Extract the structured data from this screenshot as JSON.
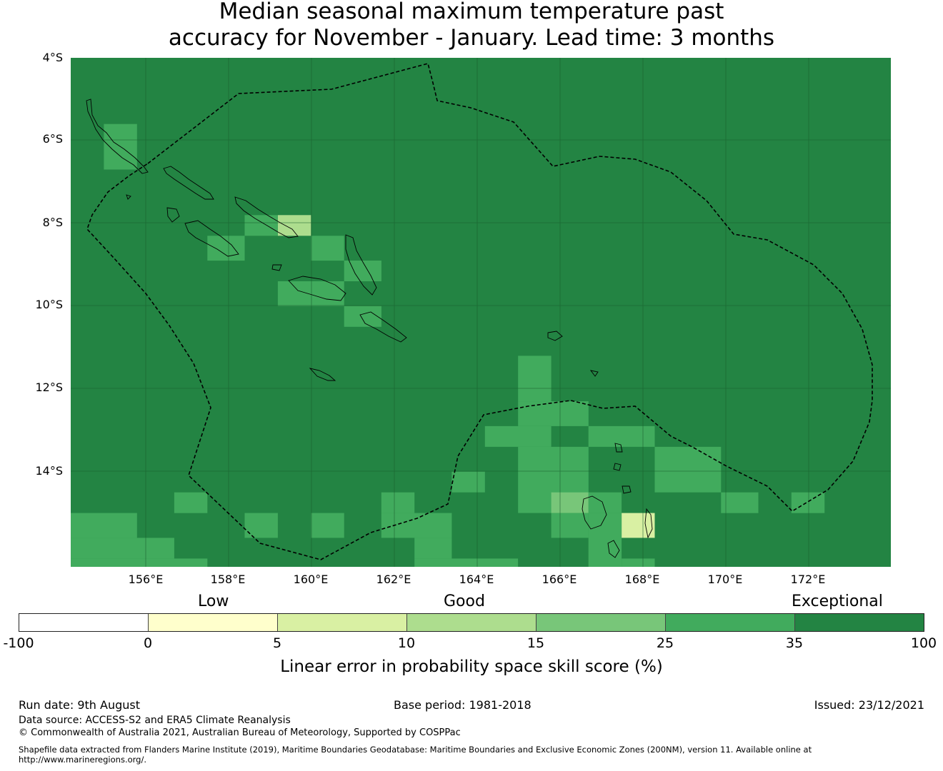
{
  "title": {
    "line1": "Median seasonal maximum temperature past",
    "line2": "accuracy for November - January. Lead time: 3 months"
  },
  "map": {
    "lat_labels": [
      "4°S",
      "6°S",
      "8°S",
      "10°S",
      "12°S",
      "14°S"
    ],
    "lon_labels": [
      "156°E",
      "158°E",
      "160°E",
      "162°E",
      "164°E",
      "166°E",
      "168°E",
      "170°E",
      "172°E"
    ],
    "extent": {
      "lon": [
        154.2,
        174.0
      ],
      "lat": [
        -16.3,
        -4.0
      ]
    },
    "grid_step_degrees": 2,
    "background_category": "35-100",
    "highlighted_cells": [
      {
        "lon_range": [
          155.0,
          155.8
        ],
        "lat_range": [
          -6.7,
          -5.6
        ],
        "category": "25-35"
      },
      {
        "lon_range": [
          159.2,
          160.0
        ],
        "lat_range": [
          -8.3,
          -7.8
        ],
        "category": "10-15"
      },
      {
        "lon_range": [
          158.4,
          159.2
        ],
        "lat_range": [
          -8.3,
          -7.8
        ],
        "category": "25-35"
      },
      {
        "lon_range": [
          157.5,
          158.4
        ],
        "lat_range": [
          -8.9,
          -8.3
        ],
        "category": "25-35"
      },
      {
        "lon_range": [
          160.0,
          160.8
        ],
        "lat_range": [
          -8.9,
          -8.3
        ],
        "category": "25-35"
      },
      {
        "lon_range": [
          160.8,
          161.7
        ],
        "lat_range": [
          -9.4,
          -8.9
        ],
        "category": "25-35"
      },
      {
        "lon_range": [
          159.2,
          160.8
        ],
        "lat_range": [
          -10.0,
          -9.4
        ],
        "category": "25-35"
      },
      {
        "lon_range": [
          160.8,
          161.7
        ],
        "lat_range": [
          -10.5,
          -10.0
        ],
        "category": "25-35"
      },
      {
        "lon_range": [
          165.0,
          165.8
        ],
        "lat_range": [
          -12.3,
          -11.2
        ],
        "category": "25-35"
      },
      {
        "lon_range": [
          164.2,
          165.8
        ],
        "lat_range": [
          -13.4,
          -12.9
        ],
        "category": "25-35"
      },
      {
        "lon_range": [
          165.0,
          166.7
        ],
        "lat_range": [
          -12.9,
          -12.3
        ],
        "category": "25-35"
      },
      {
        "lon_range": [
          166.7,
          168.3
        ],
        "lat_range": [
          -13.4,
          -12.9
        ],
        "category": "25-35"
      },
      {
        "lon_range": [
          165.0,
          166.7
        ],
        "lat_range": [
          -15.0,
          -13.4
        ],
        "category": "25-35"
      },
      {
        "lon_range": [
          168.3,
          169.9
        ],
        "lat_range": [
          -14.5,
          -13.4
        ],
        "category": "25-35"
      },
      {
        "lon_range": [
          163.4,
          164.2
        ],
        "lat_range": [
          -14.5,
          -14.0
        ],
        "category": "25-35"
      },
      {
        "lon_range": [
          165.8,
          166.7
        ],
        "lat_range": [
          -15.0,
          -14.5
        ],
        "category": "15-25"
      },
      {
        "lon_range": [
          166.7,
          167.5
        ],
        "lat_range": [
          -15.0,
          -14.5
        ],
        "category": "25-35"
      },
      {
        "lon_range": [
          167.5,
          168.3
        ],
        "lat_range": [
          -15.6,
          -15.0
        ],
        "category": "5-10"
      },
      {
        "lon_range": [
          165.8,
          166.7
        ],
        "lat_range": [
          -15.6,
          -15.0
        ],
        "category": "25-35"
      },
      {
        "lon_range": [
          166.7,
          167.5
        ],
        "lat_range": [
          -16.3,
          -15.0
        ],
        "category": "25-35"
      },
      {
        "lon_range": [
          167.5,
          168.3
        ],
        "lat_range": [
          -16.3,
          -16.1
        ],
        "category": "25-35"
      },
      {
        "lon_range": [
          169.9,
          170.8
        ],
        "lat_range": [
          -15.0,
          -14.5
        ],
        "category": "25-35"
      },
      {
        "lon_range": [
          171.6,
          172.4
        ],
        "lat_range": [
          -15.0,
          -14.5
        ],
        "category": "25-35"
      },
      {
        "lon_range": [
          156.7,
          157.5
        ],
        "lat_range": [
          -15.0,
          -14.5
        ],
        "category": "25-35"
      },
      {
        "lon_range": [
          154.2,
          155.8
        ],
        "lat_range": [
          -15.6,
          -15.0
        ],
        "category": "25-35"
      },
      {
        "lon_range": [
          154.2,
          156.7
        ],
        "lat_range": [
          -16.1,
          -15.6
        ],
        "category": "25-35"
      },
      {
        "lon_range": [
          154.2,
          157.5
        ],
        "lat_range": [
          -16.3,
          -16.1
        ],
        "category": "25-35"
      },
      {
        "lon_range": [
          158.4,
          159.2
        ],
        "lat_range": [
          -15.6,
          -15.0
        ],
        "category": "25-35"
      },
      {
        "lon_range": [
          160.0,
          160.8
        ],
        "lat_range": [
          -15.6,
          -15.0
        ],
        "category": "25-35"
      },
      {
        "lon_range": [
          161.7,
          162.5
        ],
        "lat_range": [
          -15.0,
          -14.5
        ],
        "category": "25-35"
      },
      {
        "lon_range": [
          161.7,
          163.4
        ],
        "lat_range": [
          -15.6,
          -15.0
        ],
        "category": "25-35"
      },
      {
        "lon_range": [
          162.5,
          163.4
        ],
        "lat_range": [
          -16.1,
          -15.6
        ],
        "category": "25-35"
      },
      {
        "lon_range": [
          162.5,
          165.0
        ],
        "lat_range": [
          -16.3,
          -16.1
        ],
        "category": "25-35"
      }
    ]
  },
  "legend": {
    "category_labels": {
      "low": "Low",
      "good": "Good",
      "exceptional": "Exceptional"
    },
    "ticks": [
      "-100",
      "0",
      "5",
      "10",
      "15",
      "25",
      "35",
      "100"
    ],
    "colors": [
      "#ffffff",
      "#ffffcc",
      "#d9f0a3",
      "#addd8e",
      "#78c679",
      "#41ab5d",
      "#238443"
    ],
    "label": "Linear error in probability space skill score (%)"
  },
  "footer": {
    "run_date": "Run date: 9th August",
    "base_period": "Base period: 1981-2018",
    "issued": "Issued: 23/12/2021",
    "data_source": "Data source: ACCESS-S2 and ERA5 Climate Reanalysis",
    "copyright": "© Commonwealth of Australia 2021, Australian Bureau of Meteorology, Supported by COSPPac",
    "shapefile_line1": "Shapefile data extracted from Flanders Marine Institute (2019), Maritime Boundaries Geodatabase: Maritime Boundaries and Exclusive Economic Zones (200NM), version 11. Available online at",
    "shapefile_line2": "http://www.marineregions.org/."
  }
}
